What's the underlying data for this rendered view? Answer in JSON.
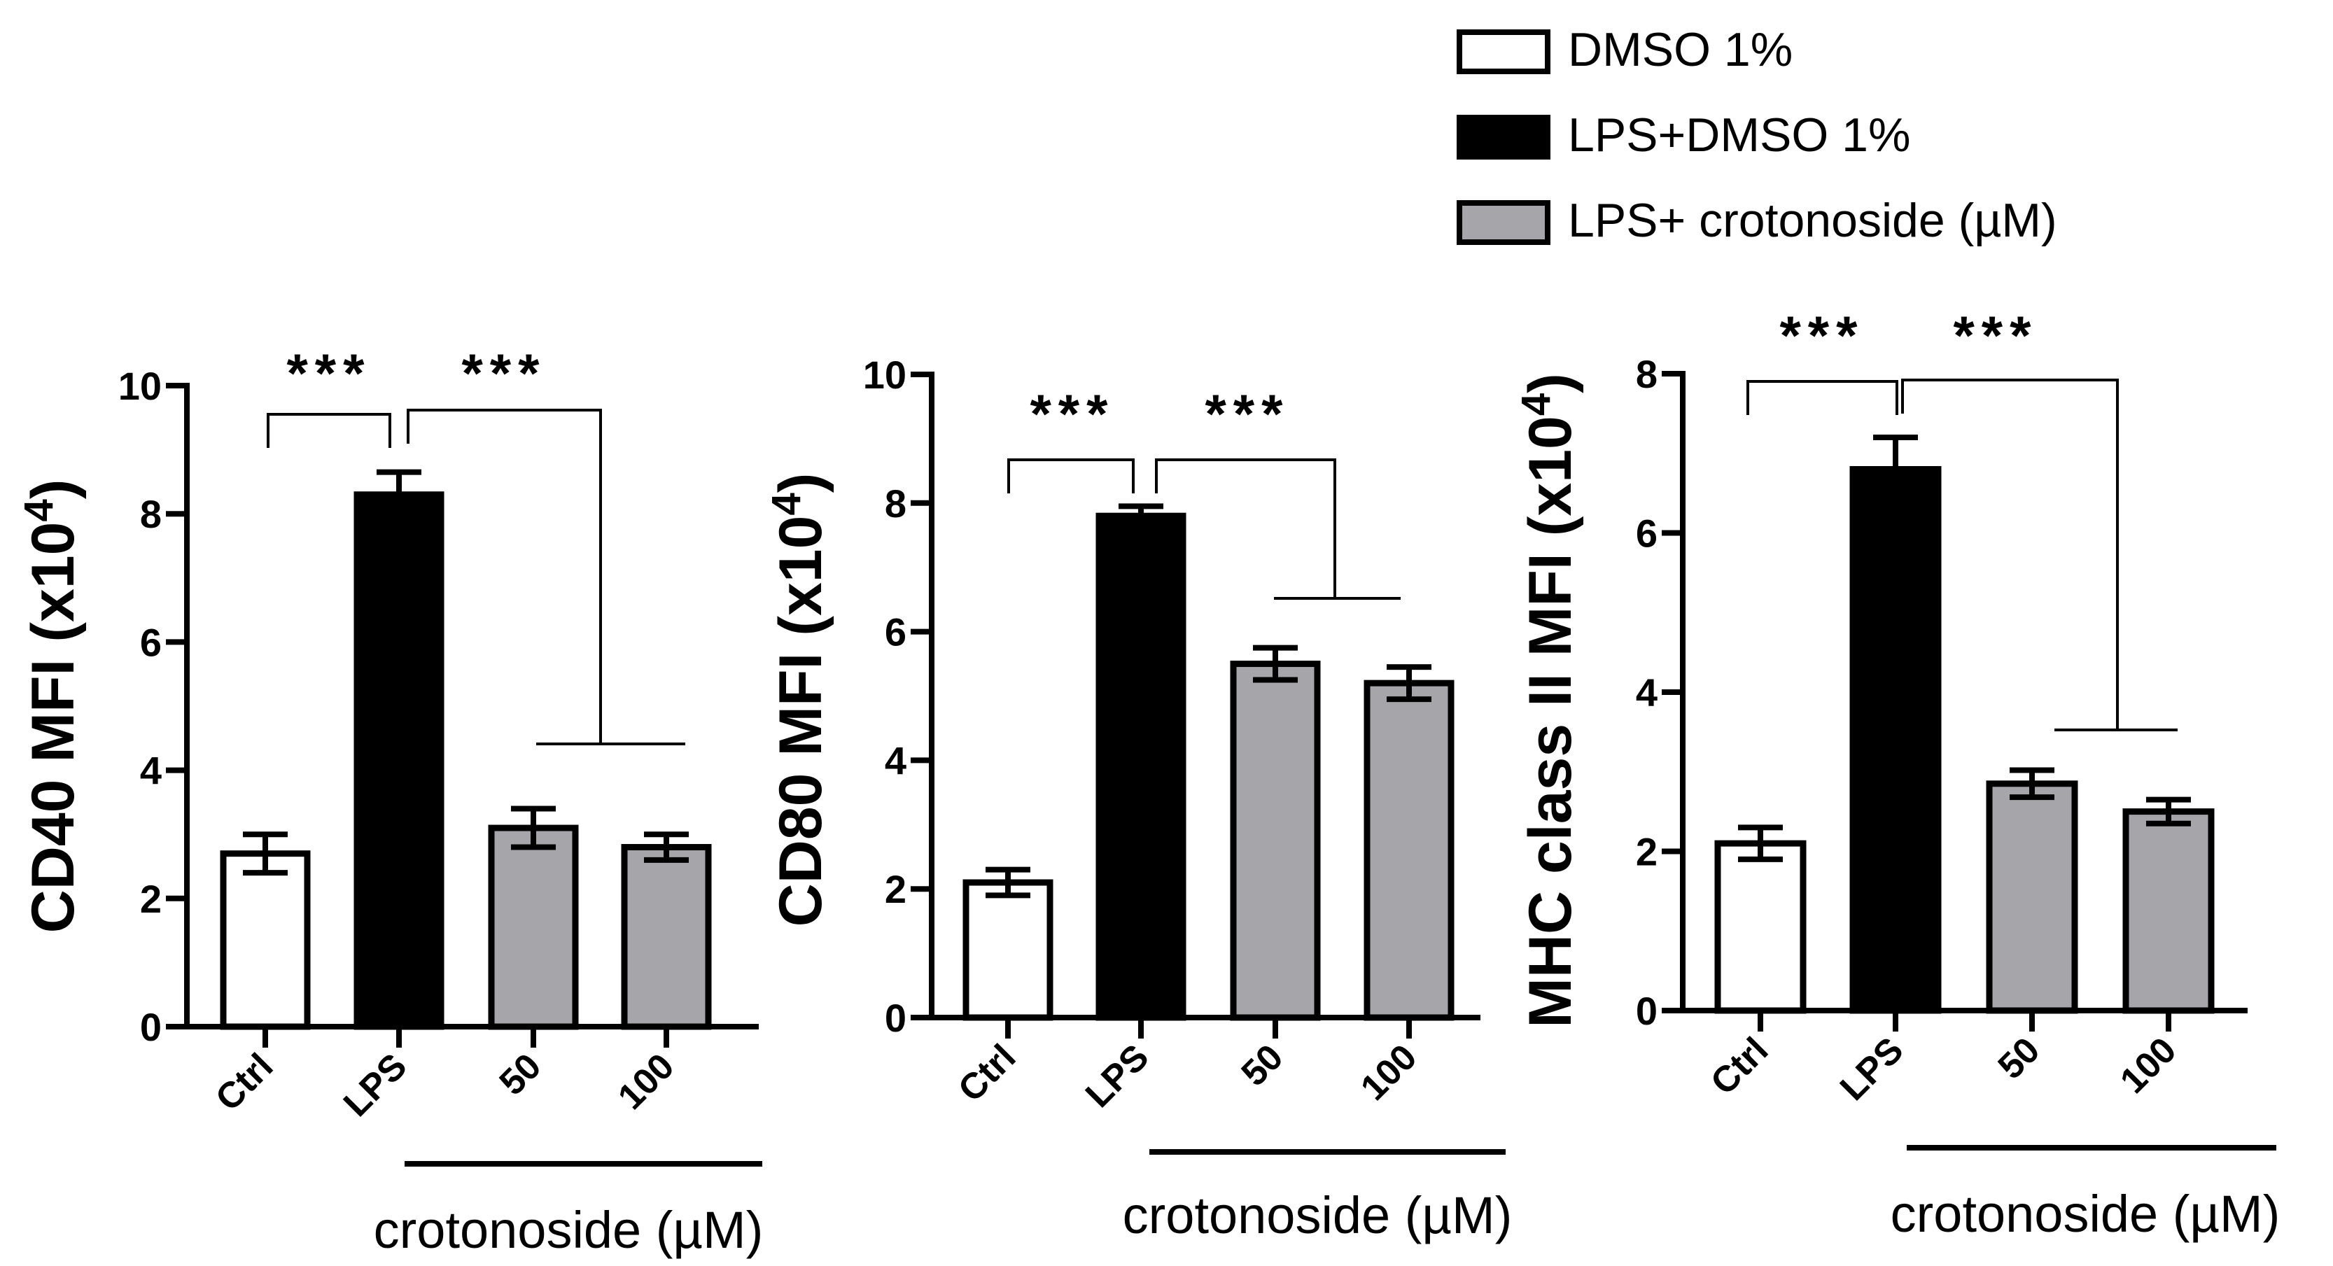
{
  "colors": {
    "ctrl_fill": "#ffffff",
    "lps_fill": "#000000",
    "crotonoside_fill": "#a6a6aa",
    "ink": "#000000"
  },
  "legend": [
    {
      "label": "DMSO 1%",
      "color": "#ffffff"
    },
    {
      "label": "LPS+DMSO 1%",
      "color": "#000000"
    },
    {
      "label": "LPS+ crotonoside (µM)",
      "color": "#a6a6aa"
    }
  ],
  "chart_data": [
    {
      "type": "bar",
      "ylabel_main": "CD40 MFI (x10",
      "ylabel_exp": "4",
      "ylabel_close": ")",
      "categories": [
        "Ctrl",
        "LPS",
        "50",
        "100"
      ],
      "values": [
        2.7,
        8.3,
        3.1,
        2.8
      ],
      "errors": [
        0.3,
        0.35,
        0.3,
        0.2
      ],
      "ylim": [
        0,
        10
      ],
      "yticks": [
        "0",
        "2",
        "4",
        "6",
        "8",
        "10"
      ],
      "xlabel": "crotonoside (µM)",
      "significance": [
        {
          "label": "***",
          "comparison": "Ctrl vs LPS"
        },
        {
          "label": "***",
          "comparison": "LPS vs crotonoside"
        }
      ]
    },
    {
      "type": "bar",
      "ylabel_main": "CD80 MFI (x10",
      "ylabel_exp": "4",
      "ylabel_close": ")",
      "categories": [
        "Ctrl",
        "LPS",
        "50",
        "100"
      ],
      "values": [
        2.1,
        7.8,
        5.5,
        5.2
      ],
      "errors": [
        0.2,
        0.15,
        0.25,
        0.25
      ],
      "ylim": [
        0,
        10
      ],
      "yticks": [
        "0",
        "2",
        "4",
        "6",
        "8",
        "10"
      ],
      "xlabel": "crotonoside (µM)",
      "significance": [
        {
          "label": "***",
          "comparison": "Ctrl vs LPS"
        },
        {
          "label": "***",
          "comparison": "LPS vs crotonoside"
        }
      ]
    },
    {
      "type": "bar",
      "ylabel_main": "MHC class II MFI (x10",
      "ylabel_exp": "4",
      "ylabel_close": ")",
      "categories": [
        "Ctrl",
        "LPS",
        "50",
        "100"
      ],
      "values": [
        2.1,
        6.8,
        2.85,
        2.5
      ],
      "errors": [
        0.2,
        0.4,
        0.17,
        0.15
      ],
      "ylim": [
        0,
        8
      ],
      "yticks": [
        "0",
        "2",
        "4",
        "6",
        "8"
      ],
      "xlabel": "crotonoside (µM)",
      "significance": [
        {
          "label": "***",
          "comparison": "Ctrl vs LPS"
        },
        {
          "label": "***",
          "comparison": "LPS vs crotonoside"
        }
      ]
    }
  ]
}
